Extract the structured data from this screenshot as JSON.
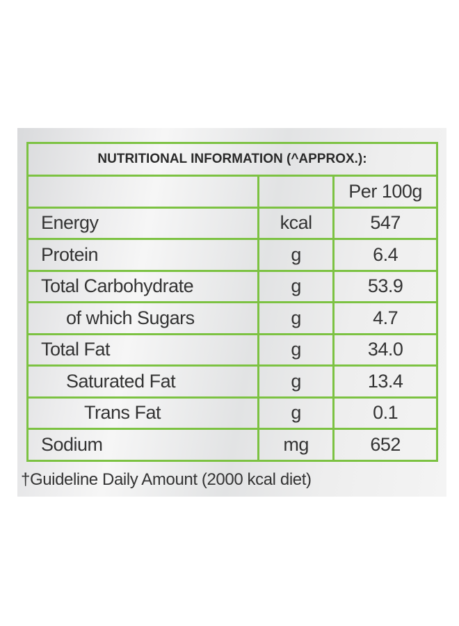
{
  "table": {
    "title": "NUTRITIONAL INFORMATION (^APPROX.):",
    "header": {
      "name": "",
      "unit": "",
      "value": "Per 100g"
    },
    "rows": [
      {
        "name": "Energy",
        "unit": "kcal",
        "value": "547"
      },
      {
        "name": "Protein",
        "unit": "g",
        "value": "6.4"
      },
      {
        "name": "Total Carbohydrate",
        "unit": "g",
        "value": "53.9"
      },
      {
        "name": "of which Sugars",
        "unit": "g",
        "value": "4.7"
      },
      {
        "name": "Total Fat",
        "unit": "g",
        "value": "34.0"
      },
      {
        "name": "Saturated Fat",
        "unit": "g",
        "value": "13.4"
      },
      {
        "name": "Trans Fat",
        "unit": "g",
        "value": "0.1"
      },
      {
        "name": "Sodium",
        "unit": "mg",
        "value": "652"
      }
    ]
  },
  "footnote": "†Guideline Daily Amount (2000 kcal diet)",
  "colors": {
    "border": "#7cc242",
    "text": "#333333",
    "panel": "#eeeeee"
  }
}
